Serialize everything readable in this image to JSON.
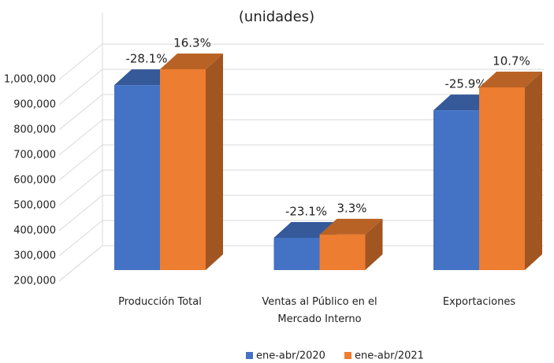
{
  "chart_data": {
    "type": "bar3d",
    "title": "(unidades)",
    "categories": [
      "Producción Total",
      "Ventas al Público en el Mercado Interno",
      "Exportaciones"
    ],
    "series": [
      {
        "name": "ene-abr/2020",
        "color": "#4472c4",
        "values": [
          934000,
          328000,
          834000
        ],
        "change_labels": [
          "-28.1%",
          "-23.1%",
          "-25.9%"
        ]
      },
      {
        "name": "ene-abr/2021",
        "color": "#ed7d31",
        "values": [
          997000,
          341000,
          925000
        ],
        "change_labels": [
          "16.3%",
          "3.3%",
          "10.7%"
        ]
      }
    ],
    "ylim": [
      200000,
      1000000
    ],
    "yticks": [
      {
        "value": 200000,
        "label": "200,000"
      },
      {
        "value": 300000,
        "label": "300,000"
      },
      {
        "value": 400000,
        "label": "400,000"
      },
      {
        "value": 500000,
        "label": "500,000"
      },
      {
        "value": 600000,
        "label": "600,000"
      },
      {
        "value": 700000,
        "label": "700,000"
      },
      {
        "value": 800000,
        "label": "800,000"
      },
      {
        "value": 900000,
        "label": "900,000"
      },
      {
        "value": 1000000,
        "label": "1,000,000"
      }
    ],
    "grid": true,
    "legend": "bottom"
  }
}
